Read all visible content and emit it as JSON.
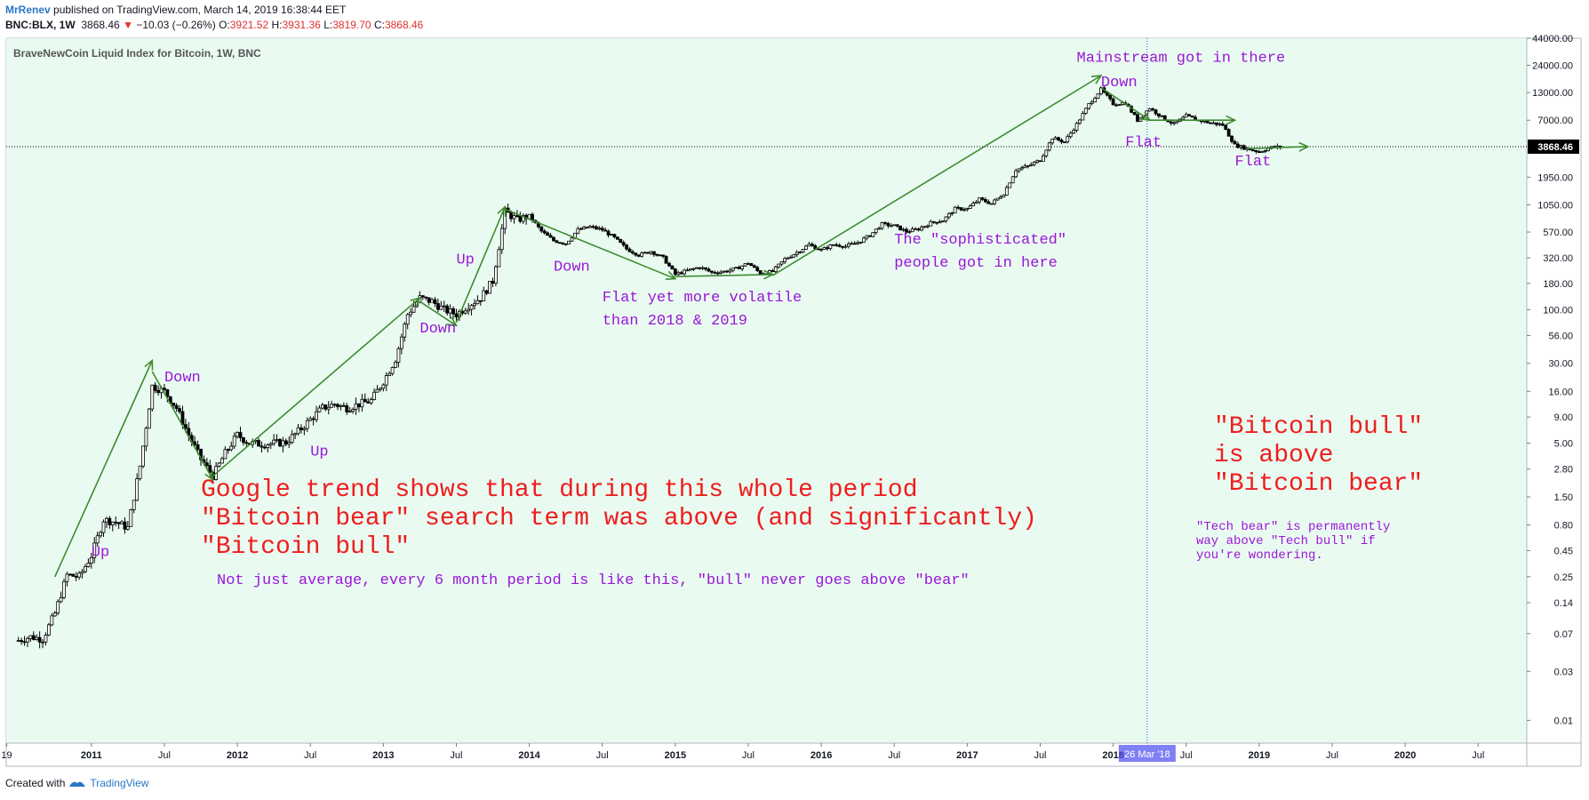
{
  "header": {
    "author": "MrRenev",
    "published": "published on TradingView.com, March 14, 2019 16:38:44 EET",
    "symbol": "BNC:BLX, 1W",
    "last": "3868.46",
    "change": "−10.03 (−0.26%)",
    "open_label": "O:",
    "open": "3921.52",
    "high_label": "H:",
    "high": "3931.36",
    "low_label": "L:",
    "low": "3819.70",
    "close_label": "C:",
    "close": "3868.46"
  },
  "colors": {
    "background": "#e9fbf1",
    "arrows": "#3f8b2e",
    "labels": "#9a16d9",
    "big_text": "#ef1d1d",
    "crosshair": "#2962ff",
    "candles": "#000000"
  },
  "footer": {
    "created_with": "Created with",
    "brand": "TradingView"
  },
  "chart_data": {
    "type": "candlestick",
    "title": "BraveNewCoin Liquid Index for Bitcoin, 1W, BNC",
    "y_scale": "log",
    "ylim": [
      0.006,
      44000
    ],
    "xlim": [
      "2010-06",
      "2020-11"
    ],
    "y_ticks": [
      "44000.00",
      "24000.00",
      "13000.00",
      "7000.00",
      "3868.46",
      "1950.00",
      "1050.00",
      "570.00",
      "320.00",
      "180.00",
      "100.00",
      "56.00",
      "30.00",
      "16.00",
      "9.00",
      "5.00",
      "2.80",
      "1.50",
      "0.80",
      "0.45",
      "0.25",
      "0.14",
      "0.07",
      "0.03",
      "0.01"
    ],
    "x_ticks": [
      "19",
      "2011",
      "Jul",
      "2012",
      "Jul",
      "2013",
      "Jul",
      "2014",
      "Jul",
      "2015",
      "Jul",
      "2016",
      "Jul",
      "2017",
      "Jul",
      "2018",
      "Jul",
      "2019",
      "Jul",
      "2020",
      "Jul"
    ],
    "last_price_label": "3868.46",
    "crosshair_date_label": "26 Mar '18",
    "price_path": [
      [
        "2010-07",
        0.06
      ],
      [
        "2010-08",
        0.065
      ],
      [
        "2010-09",
        0.062
      ],
      [
        "2010-10",
        0.11
      ],
      [
        "2010-11",
        0.26
      ],
      [
        "2010-12",
        0.25
      ],
      [
        "2011-01",
        0.4
      ],
      [
        "2011-02",
        0.9
      ],
      [
        "2011-03",
        0.85
      ],
      [
        "2011-04",
        0.75
      ],
      [
        "2011-05",
        3.0
      ],
      [
        "2011-06",
        18
      ],
      [
        "2011-07",
        16
      ],
      [
        "2011-08",
        11
      ],
      [
        "2011-09",
        6
      ],
      [
        "2011-10",
        3.5
      ],
      [
        "2011-11",
        2.4
      ],
      [
        "2011-12",
        4.0
      ],
      [
        "2012-01",
        6.0
      ],
      [
        "2012-02",
        5.0
      ],
      [
        "2012-03",
        4.9
      ],
      [
        "2012-04",
        5.0
      ],
      [
        "2012-05",
        5.1
      ],
      [
        "2012-06",
        6.5
      ],
      [
        "2012-07",
        8.5
      ],
      [
        "2012-08",
        11
      ],
      [
        "2012-09",
        12
      ],
      [
        "2012-10",
        11
      ],
      [
        "2012-11",
        12
      ],
      [
        "2012-12",
        13
      ],
      [
        "2013-01",
        20
      ],
      [
        "2013-02",
        33
      ],
      [
        "2013-03",
        90
      ],
      [
        "2013-04",
        130
      ],
      [
        "2013-05",
        120
      ],
      [
        "2013-06",
        100
      ],
      [
        "2013-07",
        90
      ],
      [
        "2013-08",
        110
      ],
      [
        "2013-09",
        130
      ],
      [
        "2013-10",
        190
      ],
      [
        "2013-11",
        900
      ],
      [
        "2013-12",
        750
      ],
      [
        "2014-01",
        820
      ],
      [
        "2014-02",
        580
      ],
      [
        "2014-03",
        470
      ],
      [
        "2014-04",
        440
      ],
      [
        "2014-05",
        600
      ],
      [
        "2014-06",
        640
      ],
      [
        "2014-07",
        600
      ],
      [
        "2014-08",
        500
      ],
      [
        "2014-09",
        390
      ],
      [
        "2014-10",
        340
      ],
      [
        "2014-11",
        370
      ],
      [
        "2014-12",
        320
      ],
      [
        "2015-01",
        220
      ],
      [
        "2015-02",
        240
      ],
      [
        "2015-03",
        260
      ],
      [
        "2015-04",
        230
      ],
      [
        "2015-05",
        235
      ],
      [
        "2015-06",
        250
      ],
      [
        "2015-07",
        285
      ],
      [
        "2015-08",
        225
      ],
      [
        "2015-09",
        235
      ],
      [
        "2015-10",
        310
      ],
      [
        "2015-11",
        360
      ],
      [
        "2015-12",
        430
      ],
      [
        "2016-01",
        380
      ],
      [
        "2016-02",
        430
      ],
      [
        "2016-03",
        415
      ],
      [
        "2016-04",
        450
      ],
      [
        "2016-05",
        530
      ],
      [
        "2016-06",
        680
      ],
      [
        "2016-07",
        655
      ],
      [
        "2016-08",
        575
      ],
      [
        "2016-09",
        610
      ],
      [
        "2016-10",
        700
      ],
      [
        "2016-11",
        740
      ],
      [
        "2016-12",
        960
      ],
      [
        "2017-01",
        960
      ],
      [
        "2017-02",
        1190
      ],
      [
        "2017-03",
        1080
      ],
      [
        "2017-04",
        1350
      ],
      [
        "2017-05",
        2300
      ],
      [
        "2017-06",
        2500
      ],
      [
        "2017-07",
        2870
      ],
      [
        "2017-08",
        4700
      ],
      [
        "2017-09",
        4300
      ],
      [
        "2017-10",
        6400
      ],
      [
        "2017-11",
        10000
      ],
      [
        "2017-12",
        14000
      ],
      [
        "2018-01",
        10100
      ],
      [
        "2018-02",
        10300
      ],
      [
        "2018-03",
        7000
      ],
      [
        "2018-04",
        9200
      ],
      [
        "2018-05",
        7500
      ],
      [
        "2018-06",
        6400
      ],
      [
        "2018-07",
        7700
      ],
      [
        "2018-08",
        7000
      ],
      [
        "2018-09",
        6600
      ],
      [
        "2018-10",
        6300
      ],
      [
        "2018-11",
        4000
      ],
      [
        "2018-12",
        3700
      ],
      [
        "2019-01",
        3450
      ],
      [
        "2019-02",
        3800
      ],
      [
        "2019-03",
        3868
      ]
    ],
    "arrows": [
      [
        [
          "2010-10",
          0.25
        ],
        [
          "2011-06",
          32
        ]
      ],
      [
        [
          "2011-06",
          25
        ],
        [
          "2011-11",
          2.2
        ]
      ],
      [
        [
          "2011-11",
          2.4
        ],
        [
          "2013-04",
          130
        ]
      ],
      [
        [
          "2013-04",
          120
        ],
        [
          "2013-07",
          70
        ]
      ],
      [
        [
          "2013-07",
          75
        ],
        [
          "2013-11",
          1000
        ]
      ],
      [
        [
          "2013-11",
          950
        ],
        [
          "2015-01",
          200
        ]
      ],
      [
        [
          "2015-01",
          210
        ],
        [
          "2015-09",
          220
        ]
      ],
      [
        [
          "2015-09",
          215
        ],
        [
          "2017-12",
          19000
        ]
      ],
      [
        [
          "2017-12",
          14500
        ],
        [
          "2018-04",
          7000
        ]
      ],
      [
        [
          "2018-04",
          7000
        ],
        [
          "2018-11",
          7000
        ]
      ],
      [
        [
          "2018-12",
          3700
        ],
        [
          "2019-05",
          3870
        ]
      ]
    ],
    "annotations": [
      {
        "text": "Up"
      },
      {
        "text": "Down"
      },
      {
        "text": "Up"
      },
      {
        "text": "Down"
      },
      {
        "text": "Up"
      },
      {
        "text": "Down"
      },
      {
        "text": "Flat yet more volatile"
      },
      {
        "text": "than 2018 & 2019"
      },
      {
        "text": "The \"sophisticated\""
      },
      {
        "text": "people got in here"
      },
      {
        "text": "Mainstream got in there"
      },
      {
        "text": "Down"
      },
      {
        "text": "Flat"
      },
      {
        "text": "Flat"
      }
    ],
    "big_annotation": [
      "Google trend shows that during this whole period",
      "\"Bitcoin bear\" search term was above (and significantly)",
      "\"Bitcoin bull\""
    ],
    "sub_annotation": "Not just average, every 6 month period is like this, \"bull\" never goes above \"bear\"",
    "right_annotation": [
      "\"Bitcoin bull\"",
      "is above",
      "\"Bitcoin bear\""
    ],
    "right_note": [
      "\"Tech bear\" is permanently",
      "way above \"Tech bull\" if",
      "you're wondering."
    ]
  }
}
